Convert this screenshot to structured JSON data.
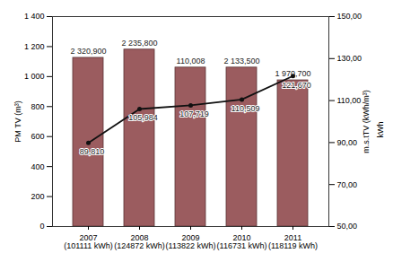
{
  "chart_data": {
    "type": "bar",
    "categories": [
      "2007\n(101111 kWh)",
      "2008\n(124872 kWh)",
      "2009\n(113822 kWh)",
      "2010\n(116731 kWh)",
      "2011\n(118119 kWh)"
    ],
    "ylabel": "PM TV (m³)",
    "ylim": [
      0,
      1400
    ],
    "yticks": [
      0,
      200,
      400,
      600,
      800,
      {
        "value": 1000,
        "label": "1 000"
      },
      {
        "value": 1200,
        "label": "1 200"
      },
      {
        "value": 1400,
        "label": "1 400"
      }
    ],
    "y2label": "m.s.tTV (kWh/m³)",
    "y2unit": "kWh",
    "y2lim": [
      50,
      150
    ],
    "y2ticks": [
      {
        "value": 50,
        "label": "50,00"
      },
      {
        "value": 70,
        "label": "70,00"
      },
      {
        "value": 90,
        "label": "90,00"
      },
      {
        "value": 110,
        "label": "110,00"
      },
      {
        "value": 130,
        "label": "130,00"
      },
      {
        "value": 150,
        "label": "150,00"
      }
    ],
    "grid": false,
    "series": [
      {
        "type": "bar",
        "color": "#9b5c5f",
        "values": [
          1125,
          1180,
          1060,
          1060,
          975
        ]
      },
      {
        "type": "line",
        "axis": "y2",
        "color": "#111111",
        "marker": "circle",
        "line_style": "solid",
        "values": [
          89.81,
          105.984,
          107.719,
          110.509,
          121.67
        ],
        "data_labels": true,
        "value_labels": [
          "89,810",
          "105,984",
          "107,719",
          "110,509",
          "121,670"
        ]
      }
    ],
    "annotations": [
      {
        "category": "2007\n(101111 kWh)",
        "text": "2 320,900"
      },
      {
        "category": "2008\n(124872 kWh)",
        "text": "2 235,800"
      },
      {
        "category": "2009\n(113822 kWh)",
        "text": "110,008"
      },
      {
        "category": "2010\n(116731 kWh)",
        "text": "2 133,500"
      },
      {
        "category": "2011\n(118119 kWh)",
        "text": "1 970,700"
      }
    ]
  }
}
